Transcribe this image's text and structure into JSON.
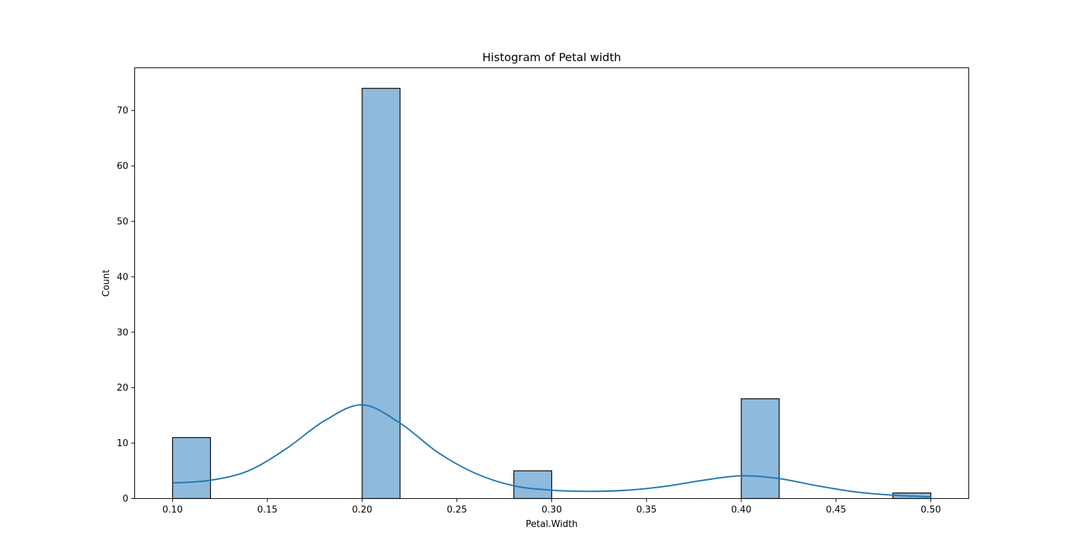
{
  "chart_data": {
    "type": "bar",
    "title": "Histogram of Petal width",
    "xlabel": "Petal.Width",
    "ylabel": "Count",
    "xlim": [
      0.08,
      0.52
    ],
    "ylim": [
      0,
      77.7
    ],
    "bins": [
      {
        "x0": 0.1,
        "x1": 0.12,
        "count": 11
      },
      {
        "x0": 0.2,
        "x1": 0.22,
        "count": 74
      },
      {
        "x0": 0.28,
        "x1": 0.3,
        "count": 5
      },
      {
        "x0": 0.4,
        "x1": 0.42,
        "count": 18
      },
      {
        "x0": 0.48,
        "x1": 0.5,
        "count": 1
      }
    ],
    "kde": {
      "x": [
        0.1,
        0.12,
        0.14,
        0.16,
        0.18,
        0.2,
        0.22,
        0.24,
        0.26,
        0.28,
        0.3,
        0.32,
        0.34,
        0.36,
        0.38,
        0.4,
        0.42,
        0.44,
        0.46,
        0.48,
        0.5
      ],
      "y": [
        2.8,
        3.3,
        5.0,
        9.0,
        14.0,
        16.9,
        13.6,
        8.3,
        4.5,
        2.3,
        1.5,
        1.3,
        1.5,
        2.2,
        3.3,
        4.1,
        3.6,
        2.3,
        1.2,
        0.6,
        0.3
      ]
    },
    "xticks": [
      "0.10",
      "0.15",
      "0.20",
      "0.25",
      "0.30",
      "0.35",
      "0.40",
      "0.45",
      "0.50"
    ],
    "yticks": [
      "0",
      "10",
      "20",
      "30",
      "40",
      "50",
      "60",
      "70"
    ],
    "grid": false,
    "colors": {
      "bar_fill": "#8fbadb",
      "bar_edge": "#000000",
      "kde_line": "#1f77b4",
      "axes": "#000000"
    }
  }
}
